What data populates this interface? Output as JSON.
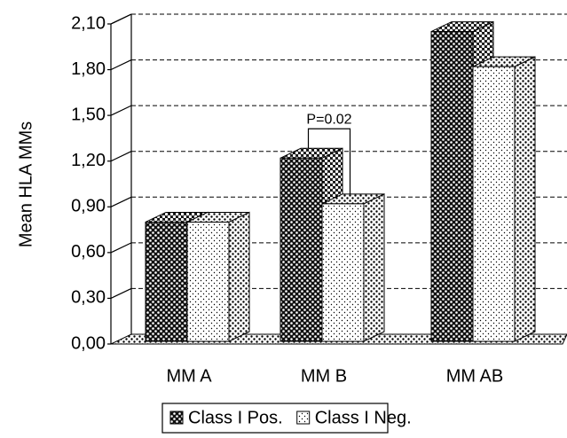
{
  "chart_data": {
    "type": "bar3d",
    "y_label": "Mean HLA MMs",
    "annotation": "P=0.02",
    "categories": [
      "MM A",
      "MM B",
      "MM AB"
    ],
    "series": [
      {
        "name": "Class I Pos.",
        "color": "#111111",
        "values": [
          0.8,
          1.22,
          2.05
        ]
      },
      {
        "name": "Class I Neg.",
        "color": "#ffffff",
        "values": [
          0.8,
          0.92,
          1.82
        ]
      }
    ],
    "ylim": [
      0,
      2.1
    ],
    "yticks": [
      {
        "value": 0,
        "label": "0,00"
      },
      {
        "value": 0.3,
        "label": "0,30"
      },
      {
        "value": 0.6,
        "label": "0,60"
      },
      {
        "value": 0.9,
        "label": "0,90"
      },
      {
        "value": 1.2,
        "label": "1,20"
      },
      {
        "value": 1.5,
        "label": "1,50"
      },
      {
        "value": 1.8,
        "label": "1,80"
      },
      {
        "value": 2.1,
        "label": "2,10"
      }
    ],
    "grid": true
  }
}
